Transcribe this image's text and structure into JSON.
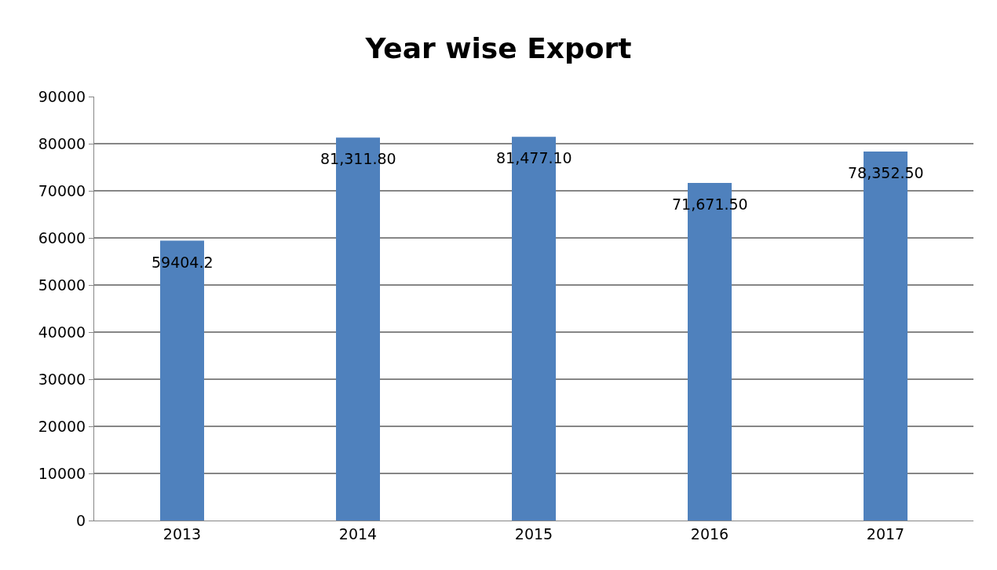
{
  "chart_data": {
    "type": "bar",
    "title": "Year wise Export",
    "categories": [
      "2013",
      "2014",
      "2015",
      "2016",
      "2017"
    ],
    "values": [
      59404.2,
      81311.8,
      81477.1,
      71671.5,
      78352.5
    ],
    "value_labels": [
      "59404.2",
      "81,311.80",
      "81,477.10",
      "71,671.50",
      "78,352.50"
    ],
    "color": "#4f81bd",
    "ylim": [
      0,
      90000
    ],
    "yticks": [
      0,
      10000,
      20000,
      30000,
      40000,
      50000,
      60000,
      70000,
      80000,
      90000
    ],
    "grid": "y",
    "legend": false
  }
}
